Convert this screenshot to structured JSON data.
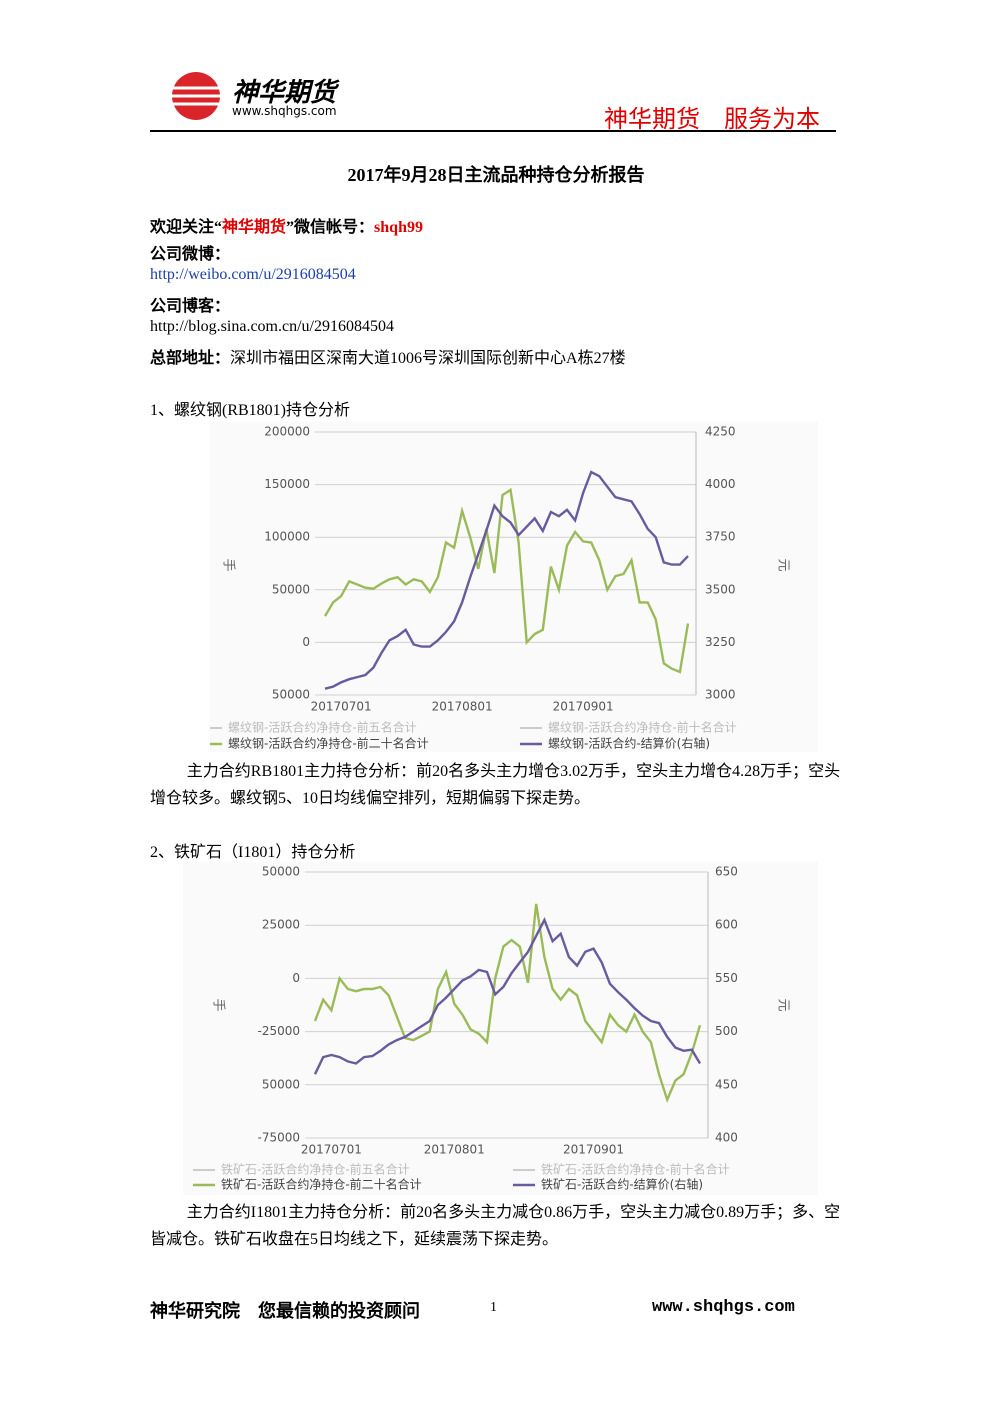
{
  "header": {
    "brand": "神华期货",
    "url": "www.shqhgs.com",
    "slogan": "神华期货　服务为本"
  },
  "title": "2017年9月28日主流品种持仓分析报告",
  "contacts": {
    "follow_pre": "欢迎关注“",
    "follow_brand": "神华期货",
    "follow_mid": "”微信帐号：",
    "follow_id": "shqh99",
    "weibo_label": "公司微博：",
    "weibo_url": "http://weibo.com/u/2916084504",
    "blog_label": "公司博客：",
    "blog_url": "http://blog.sina.com.cn/u/2916084504",
    "address_label": "总部地址：",
    "address": "深圳市福田区深南大道1006号深圳国际创新中心A栋27楼"
  },
  "sections": [
    {
      "heading": "1、螺纹钢(RB1801)持仓分析",
      "analysis": "主力合约RB1801主力持仓分析：前20名多头主力增仓3.02万手，空头主力增仓4.28万手；空头增仓较多。螺纹钢5、10日均线偏空排列，短期偏弱下探走势。"
    },
    {
      "heading": "2、铁矿石（I1801）持仓分析",
      "analysis": "主力合约I1801主力持仓分析：前20名多头主力减仓0.86万手，空头主力减仓0.89万手；多、空皆减仓。铁矿石收盘在5日均线之下，延续震荡下探走势。"
    }
  ],
  "chart_data": [
    {
      "type": "line",
      "ylabel": "手",
      "y2label": "元",
      "categories": [
        null,
        null,
        "20170701",
        null,
        null,
        null,
        null,
        null,
        null,
        null,
        null,
        null,
        null,
        null,
        null,
        null,
        null,
        "20170801",
        null,
        null,
        null,
        null,
        null,
        null,
        null,
        null,
        null,
        null,
        null,
        null,
        null,
        null,
        "20170901",
        null,
        null,
        null,
        null,
        null,
        null,
        null,
        null,
        null,
        null,
        null,
        null,
        null
      ],
      "ylim": [
        -50000,
        200000
      ],
      "yticks": [
        {
          "value": -50000,
          "label": "50000"
        },
        0,
        50000,
        100000,
        150000,
        200000
      ],
      "y2lim": [
        3000,
        4250
      ],
      "y2ticks": [
        3000,
        3250,
        3500,
        3750,
        4000,
        4250
      ],
      "grid": true,
      "faded_legend": [
        "螺纹钢-活跃合约净持仓-前五名合计",
        "螺纹钢-活跃合约净持仓-前十名合计"
      ],
      "series": [
        {
          "name": "螺纹钢-活跃合约净持仓-前二十名合计",
          "color": "#9bbb59",
          "values": [
            25000,
            38000,
            44000,
            58000,
            55000,
            52000,
            51000,
            56000,
            60000,
            62000,
            55000,
            60000,
            58000,
            48000,
            62000,
            95000,
            90000,
            125000,
            100000,
            70000,
            108000,
            66000,
            140000,
            145000,
            95000,
            0,
            8000,
            12000,
            72000,
            50000,
            92000,
            105000,
            96000,
            95000,
            78000,
            50000,
            63000,
            65000,
            78000,
            38000,
            38000,
            22000,
            -20000,
            -25000,
            -28000,
            18000
          ]
        },
        {
          "name": "螺纹钢-活跃合约-结算价(右轴)",
          "color": "#6a5aa0",
          "axis": "y2",
          "values": [
            3030,
            3040,
            3060,
            3075,
            3085,
            3095,
            3130,
            3200,
            3260,
            3280,
            3310,
            3240,
            3230,
            3230,
            3260,
            3300,
            3350,
            3440,
            3560,
            3670,
            3780,
            3900,
            3850,
            3820,
            3760,
            3800,
            3840,
            3780,
            3870,
            3850,
            3880,
            3830,
            3960,
            4060,
            4040,
            3990,
            3940,
            3930,
            3920,
            3860,
            3790,
            3750,
            3630,
            3620,
            3620,
            3660
          ]
        }
      ]
    },
    {
      "type": "line",
      "ylabel": "手",
      "y2label": "元",
      "categories": [
        null,
        null,
        "20170701",
        null,
        null,
        null,
        null,
        null,
        null,
        null,
        null,
        null,
        null,
        null,
        null,
        null,
        null,
        "20170801",
        null,
        null,
        null,
        null,
        null,
        null,
        null,
        null,
        null,
        null,
        null,
        null,
        null,
        null,
        null,
        null,
        "20170901",
        null,
        null,
        null,
        null,
        null,
        null,
        null,
        null,
        null,
        null,
        null,
        null,
        null
      ],
      "ylim": [
        -75000,
        50000
      ],
      "yticks": [
        -75000,
        {
          "value": -50000,
          "label": "50000"
        },
        -25000,
        0,
        25000,
        50000
      ],
      "y2lim": [
        400,
        650
      ],
      "y2ticks": [
        400,
        450,
        500,
        550,
        600,
        650
      ],
      "grid": true,
      "faded_legend": [
        "铁矿石-活跃合约净持仓-前五名合计",
        "铁矿石-活跃合约净持仓-前十名合计"
      ],
      "series": [
        {
          "name": "铁矿石-活跃合约净持仓-前二十名合计",
          "color": "#9bbb59",
          "values": [
            -20000,
            -10000,
            -15000,
            0,
            -5000,
            -6000,
            -5000,
            -5000,
            -4000,
            -8000,
            -18000,
            -28000,
            -29000,
            -27000,
            -25000,
            -5000,
            3000,
            -12000,
            -17000,
            -24000,
            -26000,
            -30000,
            0,
            15000,
            18000,
            15000,
            -2000,
            35000,
            10000,
            -5000,
            -10000,
            -5000,
            -8000,
            -20000,
            -25000,
            -30000,
            -17000,
            -22000,
            -25000,
            -17000,
            -25000,
            -30000,
            -45000,
            -57000,
            -48000,
            -45000,
            -35000,
            -22000
          ]
        },
        {
          "name": "铁矿石-活跃合约-结算价(右轴)",
          "color": "#6a5aa0",
          "axis": "y2",
          "values": [
            460,
            476,
            478,
            476,
            472,
            470,
            476,
            477,
            482,
            488,
            492,
            495,
            500,
            505,
            510,
            525,
            532,
            540,
            548,
            552,
            558,
            556,
            535,
            542,
            555,
            565,
            575,
            590,
            605,
            585,
            592,
            570,
            562,
            575,
            578,
            565,
            545,
            537,
            530,
            522,
            515,
            510,
            508,
            495,
            485,
            482,
            483,
            470
          ]
        }
      ]
    }
  ],
  "footer": {
    "left": "神华研究院　您最信赖的投资顾问",
    "page": "1",
    "right": "www.shqhgs.com"
  }
}
